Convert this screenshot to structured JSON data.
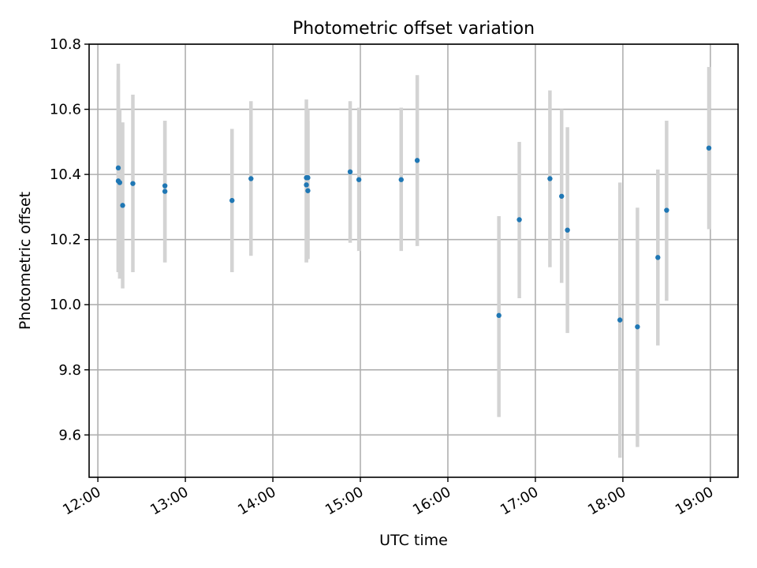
{
  "chart_data": {
    "type": "scatter",
    "title": "Photometric offset variation",
    "xlabel": "UTC time",
    "ylabel": "Photometric offset",
    "x_unit": "time of day (HH:MM)",
    "xlim": [
      "11:54",
      "19:19"
    ],
    "ylim": [
      9.47,
      10.8
    ],
    "x_ticks": [
      "12:00",
      "13:00",
      "14:00",
      "15:00",
      "16:00",
      "17:00",
      "18:00",
      "19:00"
    ],
    "y_ticks": [
      "9.6",
      "9.8",
      "10.0",
      "10.2",
      "10.4",
      "10.6",
      "10.8"
    ],
    "x_tick_rotation_deg": 30,
    "grid": true,
    "marker_color": "#1f77b4",
    "errorbar_color": "#d3d3d3",
    "series": [
      {
        "points": [
          {
            "x": "12:14",
            "y": 10.42,
            "yerr_low": 10.1,
            "yerr_high": 10.74
          },
          {
            "x": "12:14",
            "y": 10.38,
            "yerr_low": 10.1,
            "yerr_high": 10.69
          },
          {
            "x": "12:15",
            "y": 10.375,
            "yerr_low": 10.08,
            "yerr_high": 10.6
          },
          {
            "x": "12:17",
            "y": 10.305,
            "yerr_low": 10.05,
            "yerr_high": 10.56
          },
          {
            "x": "12:24",
            "y": 10.372,
            "yerr_low": 10.1,
            "yerr_high": 10.645
          },
          {
            "x": "12:46",
            "y": 10.365,
            "yerr_low": 10.13,
            "yerr_high": 10.565
          },
          {
            "x": "12:46",
            "y": 10.348,
            "yerr_low": 10.13,
            "yerr_high": 10.565
          },
          {
            "x": "13:32",
            "y": 10.32,
            "yerr_low": 10.1,
            "yerr_high": 10.54
          },
          {
            "x": "13:45",
            "y": 10.387,
            "yerr_low": 10.15,
            "yerr_high": 10.625
          },
          {
            "x": "14:23",
            "y": 10.39,
            "yerr_low": 10.13,
            "yerr_high": 10.63
          },
          {
            "x": "14:23",
            "y": 10.368,
            "yerr_low": 10.13,
            "yerr_high": 10.6
          },
          {
            "x": "14:24",
            "y": 10.39,
            "yerr_low": 10.14,
            "yerr_high": 10.6
          },
          {
            "x": "14:24",
            "y": 10.35,
            "yerr_low": 10.14,
            "yerr_high": 10.565
          },
          {
            "x": "14:53",
            "y": 10.408,
            "yerr_low": 10.19,
            "yerr_high": 10.625
          },
          {
            "x": "14:59",
            "y": 10.384,
            "yerr_low": 10.165,
            "yerr_high": 10.605
          },
          {
            "x": "15:28",
            "y": 10.384,
            "yerr_low": 10.165,
            "yerr_high": 10.605
          },
          {
            "x": "15:39",
            "y": 10.443,
            "yerr_low": 10.18,
            "yerr_high": 10.705
          },
          {
            "x": "16:35",
            "y": 9.967,
            "yerr_low": 9.655,
            "yerr_high": 10.272
          },
          {
            "x": "16:49",
            "y": 10.261,
            "yerr_low": 10.02,
            "yerr_high": 10.5
          },
          {
            "x": "17:10",
            "y": 10.387,
            "yerr_low": 10.115,
            "yerr_high": 10.658
          },
          {
            "x": "17:18",
            "y": 10.333,
            "yerr_low": 10.067,
            "yerr_high": 10.6
          },
          {
            "x": "17:22",
            "y": 10.229,
            "yerr_low": 9.913,
            "yerr_high": 10.545
          },
          {
            "x": "17:58",
            "y": 9.953,
            "yerr_low": 9.53,
            "yerr_high": 10.375
          },
          {
            "x": "18:10",
            "y": 9.932,
            "yerr_low": 9.563,
            "yerr_high": 10.298
          },
          {
            "x": "18:24",
            "y": 10.145,
            "yerr_low": 9.875,
            "yerr_high": 10.415
          },
          {
            "x": "18:30",
            "y": 10.29,
            "yerr_low": 10.012,
            "yerr_high": 10.565
          },
          {
            "x": "18:59",
            "y": 10.481,
            "yerr_low": 10.232,
            "yerr_high": 10.73
          }
        ]
      }
    ]
  }
}
